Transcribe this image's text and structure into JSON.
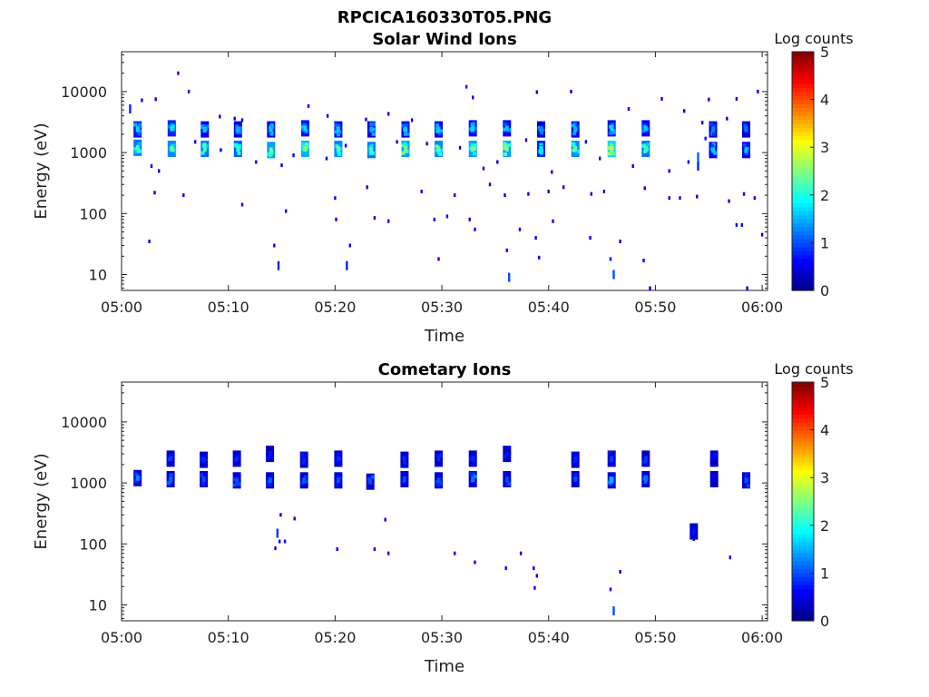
{
  "figure_title": "RPCICA160330T05.PNG",
  "colorbar": {
    "label": "Log counts",
    "ticks": [
      "0",
      "1",
      "2",
      "3",
      "4",
      "5"
    ],
    "range": [
      0,
      5
    ],
    "colormap": "jet"
  },
  "chart_data": [
    {
      "type": "heatmap",
      "title": "Solar Wind Ions",
      "xlabel": "Time",
      "ylabel": "Energy (eV)",
      "xlim_min": [
        0,
        60.5
      ],
      "xtick_minutes": [
        0,
        10,
        20,
        30,
        40,
        50,
        60
      ],
      "xticklabels": [
        "05:00",
        "05:10",
        "05:20",
        "05:30",
        "05:40",
        "05:50",
        "06:00"
      ],
      "yscale": "log",
      "ylim": [
        5.5,
        45000
      ],
      "yticks": [
        10,
        100,
        1000,
        10000
      ],
      "yticklabels": [
        "10",
        "100",
        "1000",
        "10000"
      ],
      "z_label": "Log counts",
      "clusters_note": "t = minutes after 05:00, e = energy in eV, v = log counts",
      "clusters": [
        {
          "t": 1.5,
          "e": 2400,
          "v": 1.7
        },
        {
          "t": 1.5,
          "e": 1200,
          "v": 2.2
        },
        {
          "t": 4.7,
          "e": 2500,
          "v": 1.8
        },
        {
          "t": 4.7,
          "e": 1150,
          "v": 2.3
        },
        {
          "t": 7.8,
          "e": 2400,
          "v": 1.6
        },
        {
          "t": 7.8,
          "e": 1150,
          "v": 2.2
        },
        {
          "t": 10.9,
          "e": 2400,
          "v": 1.5
        },
        {
          "t": 10.9,
          "e": 1150,
          "v": 2.1
        },
        {
          "t": 14.0,
          "e": 2400,
          "v": 1.6
        },
        {
          "t": 14.0,
          "e": 1100,
          "v": 2.4
        },
        {
          "t": 17.2,
          "e": 2500,
          "v": 1.7
        },
        {
          "t": 17.2,
          "e": 1150,
          "v": 2.5
        },
        {
          "t": 20.3,
          "e": 2400,
          "v": 1.6
        },
        {
          "t": 20.3,
          "e": 1150,
          "v": 2.3
        },
        {
          "t": 23.4,
          "e": 2400,
          "v": 1.5
        },
        {
          "t": 23.4,
          "e": 1100,
          "v": 2.2
        },
        {
          "t": 26.6,
          "e": 2400,
          "v": 1.6
        },
        {
          "t": 26.6,
          "e": 1150,
          "v": 2.4
        },
        {
          "t": 29.7,
          "e": 2400,
          "v": 1.6
        },
        {
          "t": 29.7,
          "e": 1150,
          "v": 2.3
        },
        {
          "t": 32.9,
          "e": 2500,
          "v": 1.7
        },
        {
          "t": 32.9,
          "e": 1150,
          "v": 2.4
        },
        {
          "t": 36.1,
          "e": 2500,
          "v": 1.6
        },
        {
          "t": 36.1,
          "e": 1150,
          "v": 2.4
        },
        {
          "t": 39.3,
          "e": 2400,
          "v": 1.3
        },
        {
          "t": 39.3,
          "e": 1150,
          "v": 1.8
        },
        {
          "t": 42.5,
          "e": 2400,
          "v": 1.6
        },
        {
          "t": 42.5,
          "e": 1150,
          "v": 2.3
        },
        {
          "t": 45.9,
          "e": 2500,
          "v": 1.7
        },
        {
          "t": 45.9,
          "e": 1150,
          "v": 2.7
        },
        {
          "t": 49.1,
          "e": 2500,
          "v": 1.6
        },
        {
          "t": 49.1,
          "e": 1150,
          "v": 2.2
        },
        {
          "t": 55.4,
          "e": 2400,
          "v": 1.3
        },
        {
          "t": 55.4,
          "e": 1100,
          "v": 1.6
        },
        {
          "t": 58.5,
          "e": 2400,
          "v": 1.2
        },
        {
          "t": 58.5,
          "e": 1100,
          "v": 1.6
        }
      ],
      "speckles_note": "isolated low-count cells: [minutes after 05:00, energy eV, log counts]",
      "speckles": [
        [
          0.8,
          5200,
          0.8
        ],
        [
          1.9,
          7200,
          0.6
        ],
        [
          3.2,
          7500,
          0.5
        ],
        [
          5.3,
          20000,
          0.6
        ],
        [
          6.3,
          10000,
          0.5
        ],
        [
          9.2,
          3900,
          0.5
        ],
        [
          10.6,
          3600,
          0.5
        ],
        [
          11.3,
          3400,
          0.5
        ],
        [
          17.5,
          5800,
          0.6
        ],
        [
          19.3,
          4000,
          0.5
        ],
        [
          22.9,
          3500,
          0.5
        ],
        [
          25.0,
          4300,
          0.5
        ],
        [
          27.2,
          3400,
          0.5
        ],
        [
          32.3,
          12000,
          0.7
        ],
        [
          32.9,
          8000,
          0.5
        ],
        [
          38.9,
          9800,
          0.5
        ],
        [
          42.1,
          10000,
          0.5
        ],
        [
          47.5,
          5200,
          0.6
        ],
        [
          50.6,
          7600,
          0.5
        ],
        [
          52.7,
          4800,
          0.5
        ],
        [
          55.0,
          7400,
          0.5
        ],
        [
          57.6,
          7600,
          0.5
        ],
        [
          59.6,
          10000,
          0.6
        ],
        [
          54.4,
          3100,
          0.5
        ],
        [
          56.7,
          3600,
          0.5
        ],
        [
          54.7,
          1700,
          0.7
        ],
        [
          54.0,
          850,
          1.1
        ],
        [
          54.0,
          600,
          0.8
        ],
        [
          2.8,
          600,
          0.5
        ],
        [
          3.5,
          500,
          0.4
        ],
        [
          6.9,
          1500,
          0.5
        ],
        [
          9.3,
          1100,
          0.5
        ],
        [
          12.6,
          700,
          0.5
        ],
        [
          15.0,
          620,
          0.5
        ],
        [
          16.1,
          900,
          0.5
        ],
        [
          19.2,
          800,
          0.5
        ],
        [
          21.0,
          1300,
          0.5
        ],
        [
          25.8,
          1500,
          0.5
        ],
        [
          28.6,
          1400,
          0.5
        ],
        [
          31.7,
          1200,
          0.5
        ],
        [
          33.9,
          550,
          0.5
        ],
        [
          35.2,
          700,
          0.4
        ],
        [
          37.9,
          1600,
          0.4
        ],
        [
          40.3,
          480,
          0.5
        ],
        [
          43.5,
          1500,
          0.5
        ],
        [
          44.8,
          800,
          0.5
        ],
        [
          47.9,
          600,
          0.5
        ],
        [
          51.3,
          500,
          0.5
        ],
        [
          53.1,
          700,
          0.5
        ],
        [
          3.1,
          220,
          0.5
        ],
        [
          5.8,
          200,
          0.5
        ],
        [
          11.3,
          140,
          0.6
        ],
        [
          15.4,
          110,
          0.5
        ],
        [
          20.0,
          180,
          0.5
        ],
        [
          23.0,
          270,
          0.5
        ],
        [
          28.1,
          230,
          0.5
        ],
        [
          31.2,
          200,
          0.5
        ],
        [
          34.5,
          300,
          0.5
        ],
        [
          35.9,
          200,
          0.5
        ],
        [
          38.1,
          210,
          0.5
        ],
        [
          40.0,
          230,
          0.5
        ],
        [
          41.4,
          270,
          0.5
        ],
        [
          44.0,
          210,
          0.5
        ],
        [
          45.2,
          230,
          0.5
        ],
        [
          49.0,
          260,
          0.5
        ],
        [
          51.3,
          180,
          0.5
        ],
        [
          52.3,
          180,
          0.5
        ],
        [
          53.9,
          190,
          0.5
        ],
        [
          56.9,
          160,
          0.5
        ],
        [
          58.3,
          210,
          0.5
        ],
        [
          59.3,
          180,
          0.5
        ],
        [
          2.6,
          35,
          0.5
        ],
        [
          14.3,
          30,
          0.6
        ],
        [
          14.7,
          14,
          0.8
        ],
        [
          20.1,
          80,
          0.5
        ],
        [
          21.1,
          14,
          0.8
        ],
        [
          21.4,
          30,
          0.6
        ],
        [
          23.7,
          85,
          0.5
        ],
        [
          25.0,
          75,
          0.5
        ],
        [
          29.3,
          80,
          0.5
        ],
        [
          29.7,
          18,
          0.6
        ],
        [
          30.5,
          90,
          0.5
        ],
        [
          32.6,
          80,
          0.5
        ],
        [
          33.1,
          55,
          0.6
        ],
        [
          36.1,
          25,
          0.6
        ],
        [
          36.3,
          9,
          1.0
        ],
        [
          37.3,
          55,
          0.5
        ],
        [
          38.8,
          40,
          0.5
        ],
        [
          39.1,
          19,
          0.6
        ],
        [
          40.4,
          75,
          0.5
        ],
        [
          43.9,
          40,
          0.5
        ],
        [
          45.8,
          18,
          0.6
        ],
        [
          46.1,
          10,
          1.0
        ],
        [
          46.7,
          35,
          0.5
        ],
        [
          48.9,
          17,
          0.6
        ],
        [
          49.5,
          6,
          0.5
        ],
        [
          57.6,
          65,
          0.6
        ],
        [
          58.1,
          65,
          0.6
        ],
        [
          60.0,
          45,
          0.6
        ],
        [
          58.6,
          6,
          0.5
        ]
      ]
    },
    {
      "type": "heatmap",
      "title": "Cometary Ions",
      "xlabel": "Time",
      "ylabel": "Energy (eV)",
      "xlim_min": [
        0,
        60.5
      ],
      "xtick_minutes": [
        0,
        10,
        20,
        30,
        40,
        50,
        60
      ],
      "xticklabels": [
        "05:00",
        "05:10",
        "05:20",
        "05:30",
        "05:40",
        "05:50",
        "06:00"
      ],
      "yscale": "log",
      "ylim": [
        5.5,
        45000
      ],
      "yticks": [
        10,
        100,
        1000,
        10000
      ],
      "yticklabels": [
        "10",
        "100",
        "1000",
        "10000"
      ],
      "z_label": "Log counts",
      "clusters_note": "t = minutes after 05:00, e = energy in eV, v = log counts",
      "clusters": [
        {
          "t": 1.5,
          "e": 1200,
          "v": 1.3
        },
        {
          "t": 4.6,
          "e": 2500,
          "v": 0.9
        },
        {
          "t": 4.6,
          "e": 1150,
          "v": 1.1
        },
        {
          "t": 7.7,
          "e": 2400,
          "v": 0.8
        },
        {
          "t": 7.7,
          "e": 1150,
          "v": 1.0
        },
        {
          "t": 10.8,
          "e": 2500,
          "v": 0.8
        },
        {
          "t": 10.8,
          "e": 1100,
          "v": 1.0
        },
        {
          "t": 13.9,
          "e": 3000,
          "v": 0.7
        },
        {
          "t": 13.9,
          "e": 1100,
          "v": 1.1
        },
        {
          "t": 17.1,
          "e": 2400,
          "v": 0.8
        },
        {
          "t": 17.1,
          "e": 1100,
          "v": 1.1
        },
        {
          "t": 20.3,
          "e": 2500,
          "v": 0.8
        },
        {
          "t": 20.3,
          "e": 1100,
          "v": 1.0
        },
        {
          "t": 23.3,
          "e": 1050,
          "v": 1.0
        },
        {
          "t": 26.5,
          "e": 2400,
          "v": 0.8
        },
        {
          "t": 26.5,
          "e": 1150,
          "v": 1.0
        },
        {
          "t": 29.7,
          "e": 2500,
          "v": 0.8
        },
        {
          "t": 29.7,
          "e": 1100,
          "v": 1.0
        },
        {
          "t": 32.9,
          "e": 2500,
          "v": 0.8
        },
        {
          "t": 32.9,
          "e": 1150,
          "v": 1.2
        },
        {
          "t": 36.1,
          "e": 3000,
          "v": 0.7
        },
        {
          "t": 36.1,
          "e": 1150,
          "v": 1.0
        },
        {
          "t": 42.5,
          "e": 2400,
          "v": 0.8
        },
        {
          "t": 42.5,
          "e": 1150,
          "v": 1.0
        },
        {
          "t": 45.9,
          "e": 2500,
          "v": 0.9
        },
        {
          "t": 45.9,
          "e": 1100,
          "v": 1.5
        },
        {
          "t": 49.1,
          "e": 2500,
          "v": 0.9
        },
        {
          "t": 49.1,
          "e": 1150,
          "v": 1.2
        },
        {
          "t": 55.5,
          "e": 2500,
          "v": 0.6
        },
        {
          "t": 55.5,
          "e": 1150,
          "v": 0.6
        },
        {
          "t": 58.5,
          "e": 1100,
          "v": 1.0
        },
        {
          "t": 53.6,
          "e": 160,
          "v": 0.7
        }
      ],
      "speckles_note": "isolated low-count cells: [minutes after 05:00, energy eV, log counts]",
      "speckles": [
        [
          14.6,
          150,
          0.9
        ],
        [
          14.8,
          110,
          0.6
        ],
        [
          14.4,
          85,
          0.5
        ],
        [
          14.9,
          300,
          0.5
        ],
        [
          16.2,
          260,
          0.5
        ],
        [
          15.3,
          110,
          0.5
        ],
        [
          20.2,
          82,
          0.5
        ],
        [
          23.7,
          82,
          0.5
        ],
        [
          25.0,
          70,
          0.5
        ],
        [
          24.7,
          250,
          0.5
        ],
        [
          31.2,
          70,
          0.5
        ],
        [
          33.1,
          50,
          0.6
        ],
        [
          36.0,
          40,
          0.5
        ],
        [
          37.4,
          70,
          0.5
        ],
        [
          38.6,
          40,
          0.5
        ],
        [
          38.9,
          30,
          0.5
        ],
        [
          38.7,
          19,
          0.6
        ],
        [
          45.8,
          18,
          0.6
        ],
        [
          46.1,
          8,
          1.0
        ],
        [
          46.7,
          35,
          0.5
        ],
        [
          57.0,
          60,
          0.6
        ],
        [
          53.6,
          120,
          0.5
        ]
      ]
    }
  ]
}
